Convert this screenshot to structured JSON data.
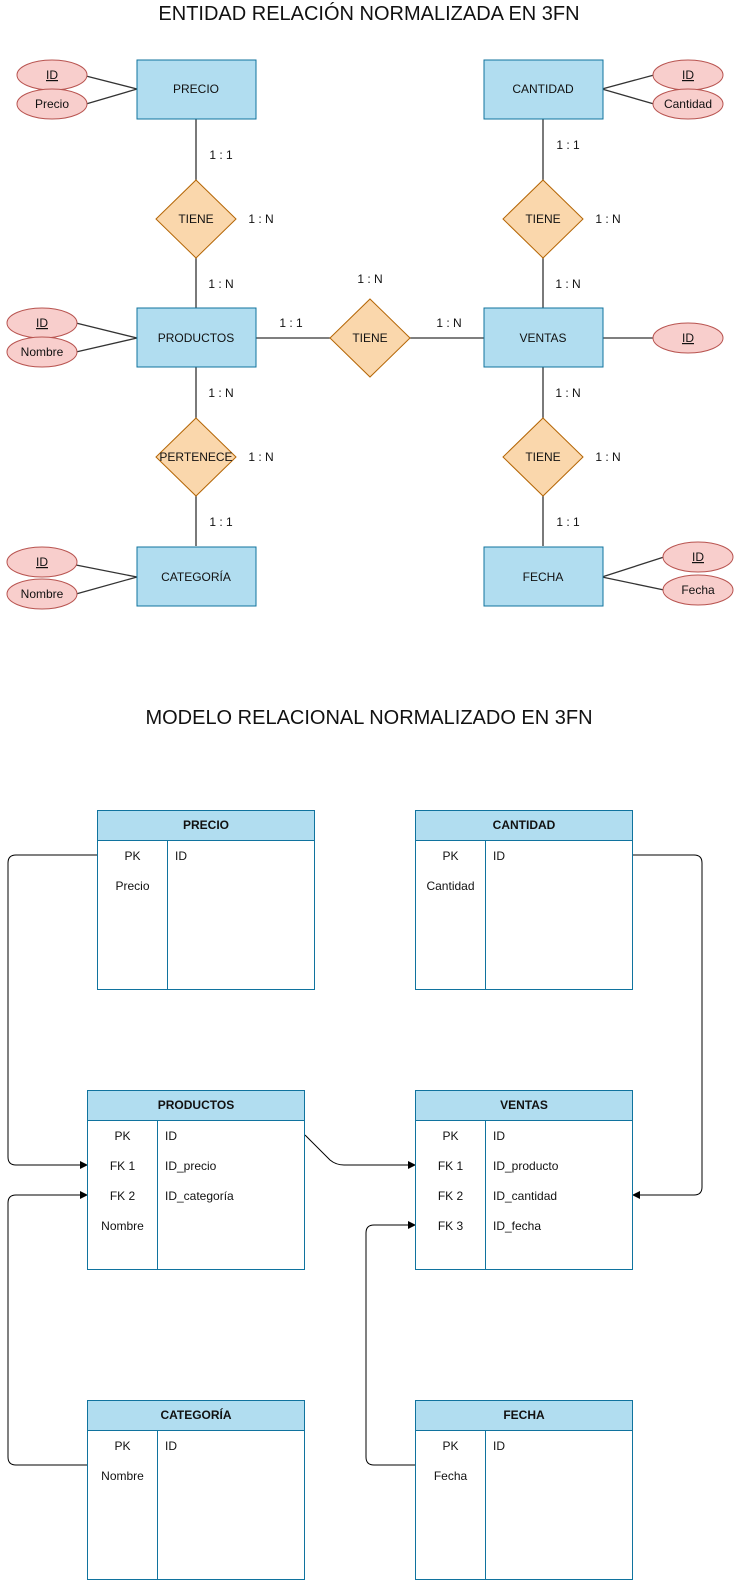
{
  "er": {
    "title": "ENTIDAD RELACIÓN NORMALIZADA EN 3FN",
    "entities": {
      "precio": "PRECIO",
      "cantidad": "CANTIDAD",
      "productos": "PRODUCTOS",
      "ventas": "VENTAS",
      "categoria": "CATEGORÍA",
      "fecha": "FECHA"
    },
    "relationships": {
      "precio_productos": "TIENE",
      "cantidad_ventas": "TIENE",
      "productos_ventas": "TIENE",
      "productos_categoria": "PERTENECE",
      "ventas_fecha": "TIENE"
    },
    "attributes": {
      "precio_id": "ID",
      "precio_precio": "Precio",
      "cantidad_id": "ID",
      "cantidad_cantidad": "Cantidad",
      "productos_id": "ID",
      "productos_nombre": "Nombre",
      "ventas_id": "ID",
      "categoria_id": "ID",
      "categoria_nombre": "Nombre",
      "fecha_id": "ID",
      "fecha_fecha": "Fecha"
    },
    "cardinalities": {
      "precio_top": "1 : 1",
      "precio_side": "1 : N",
      "precio_bottom": "1 : N",
      "cantidad_top": "1 : 1",
      "cantidad_side": "1 : N",
      "cantidad_bottom": "1 : N",
      "pv_left": "1 : 1",
      "pv_top": "1 : N",
      "pv_right": "1 : N",
      "pc_top": "1 : N",
      "pc_side": "1 : N",
      "pc_bottom": "1 : 1",
      "vf_top": "1 : N",
      "vf_side": "1 : N",
      "vf_bottom": "1 : 1"
    }
  },
  "relational": {
    "title": "MODELO RELACIONAL NORMALIZADO EN 3FN",
    "tables": {
      "precio": {
        "name": "PRECIO",
        "rows": [
          {
            "key": "PK",
            "col": "ID"
          },
          {
            "key": "Precio",
            "col": ""
          }
        ]
      },
      "cantidad": {
        "name": "CANTIDAD",
        "rows": [
          {
            "key": "PK",
            "col": "ID"
          },
          {
            "key": "Cantidad",
            "col": ""
          }
        ]
      },
      "productos": {
        "name": "PRODUCTOS",
        "rows": [
          {
            "key": "PK",
            "col": "ID"
          },
          {
            "key": "FK 1",
            "col": "ID_precio"
          },
          {
            "key": "FK 2",
            "col": "ID_categoría"
          },
          {
            "key": "Nombre",
            "col": ""
          }
        ]
      },
      "ventas": {
        "name": "VENTAS",
        "rows": [
          {
            "key": "PK",
            "col": "ID"
          },
          {
            "key": "FK 1",
            "col": "ID_producto"
          },
          {
            "key": "FK 2",
            "col": "ID_cantidad"
          },
          {
            "key": "FK 3",
            "col": "ID_fecha"
          }
        ]
      },
      "categoria": {
        "name": "CATEGORÍA",
        "rows": [
          {
            "key": "PK",
            "col": "ID"
          },
          {
            "key": "Nombre",
            "col": ""
          }
        ]
      },
      "fecha": {
        "name": "FECHA",
        "rows": [
          {
            "key": "PK",
            "col": "ID"
          },
          {
            "key": "Fecha",
            "col": ""
          }
        ]
      }
    }
  }
}
